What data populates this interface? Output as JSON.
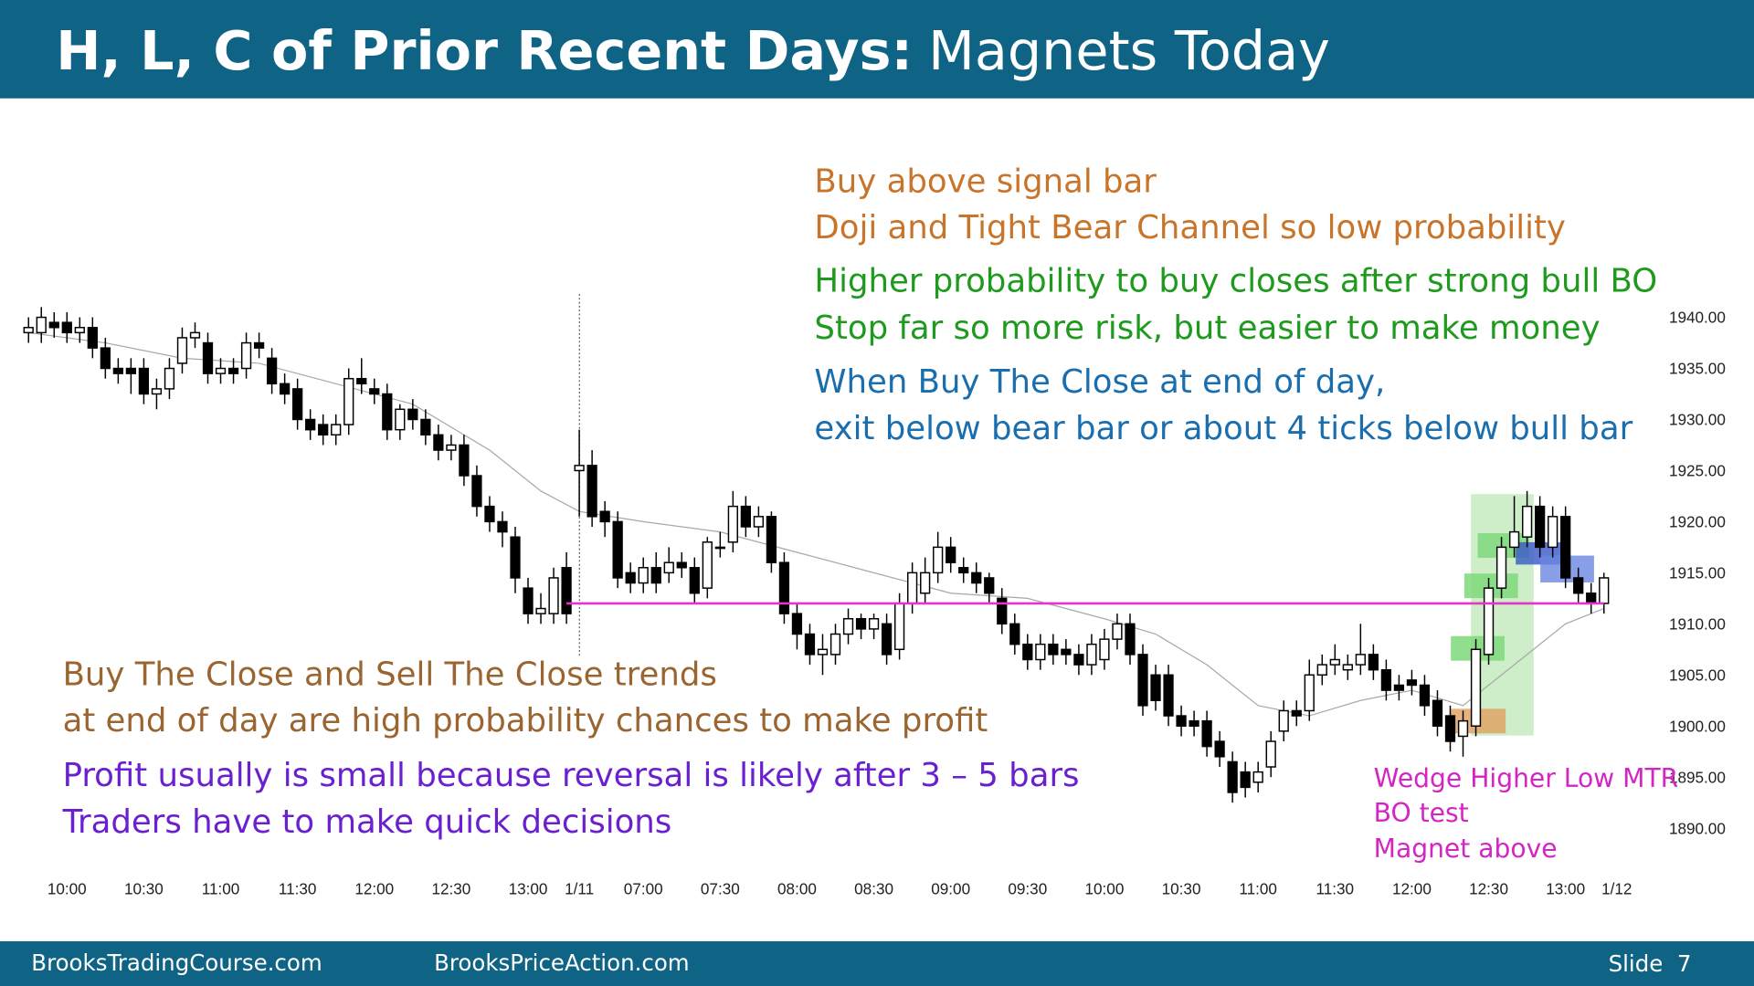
{
  "chart_data": {
    "type": "candlestick",
    "title": [
      "H, L, C of Prior Recent Days:",
      "Magnets Today"
    ],
    "open": [
      1938.5,
      1938.5,
      1939.5,
      1939.5,
      1938.5,
      1939,
      1937,
      1935,
      1935,
      1935,
      1932.5,
      1933,
      1935.5,
      1938,
      1937.5,
      1934.5,
      1935,
      1935,
      1937.5,
      1936,
      1933.5,
      1933,
      1930,
      1929.5,
      1928.5,
      1929.5,
      1934,
      1933,
      1932.5,
      1929,
      1931,
      1930,
      1928.5,
      1927,
      1927.5,
      1924.5,
      1921.5,
      1920,
      1918.5,
      1913.5,
      1911,
      1911,
      1915.5,
      1925,
      1925.5,
      1921,
      1920,
      1915,
      1914,
      1915.5,
      1915,
      1916,
      1915.5,
      1913.5,
      1917.5,
      1918,
      1921.5,
      1919.5,
      1920.5,
      1916,
      1911,
      1909,
      1907,
      1907,
      1909,
      1910.5,
      1909.5,
      1910,
      1907.5,
      1912,
      1913,
      1915,
      1917.5,
      1915.5,
      1915,
      1914.5,
      1912.5,
      1910,
      1908,
      1906.5,
      1908,
      1907.5,
      1907,
      1906,
      1906.5,
      1908.5,
      1910,
      1907,
      1905,
      1905,
      1901,
      1900.5,
      1900.5,
      1898.5,
      1896.5,
      1895.5,
      1894.5,
      1896,
      1899.5,
      1901.5,
      1901.5,
      1905,
      1906,
      1905.5,
      1906,
      1907,
      1905.5,
      1904,
      1904.5,
      1904,
      1902.5,
      1901,
      1899,
      1900,
      1907,
      1913.5,
      1917.5,
      1918.5,
      1921.5,
      1917.5,
      1920.5,
      1914.5,
      1913,
      1912
    ],
    "high": [
      1940,
      1941,
      1940.5,
      1940.5,
      1940,
      1940,
      1938,
      1936,
      1936,
      1936,
      1934,
      1936,
      1939,
      1939.5,
      1938.5,
      1936,
      1936,
      1938.5,
      1938.5,
      1937,
      1934.5,
      1934,
      1931,
      1930.5,
      1930.5,
      1935,
      1936,
      1934,
      1933.5,
      1931.5,
      1932,
      1931,
      1929.5,
      1928.5,
      1928.5,
      1925.5,
      1922.5,
      1921,
      1919.5,
      1914.5,
      1913,
      1915.5,
      1917,
      1929,
      1927,
      1922,
      1921,
      1916,
      1916.5,
      1917,
      1917.5,
      1917,
      1916.5,
      1918.5,
      1919,
      1923,
      1922.5,
      1921.5,
      1921,
      1917,
      1912,
      1910,
      1909,
      1910,
      1911.5,
      1911,
      1911,
      1911,
      1913,
      1916,
      1916.5,
      1919,
      1918.5,
      1916.5,
      1916,
      1915,
      1913.5,
      1911,
      1909,
      1909,
      1909,
      1908.5,
      1908,
      1909,
      1909.5,
      1911,
      1911,
      1908,
      1906,
      1906,
      1902,
      1901.5,
      1901.5,
      1899.5,
      1897.5,
      1896.5,
      1896.5,
      1899.5,
      1902.5,
      1902.5,
      1906.5,
      1907,
      1908,
      1907,
      1910,
      1908,
      1906.5,
      1905,
      1905.5,
      1905,
      1903.5,
      1902,
      1901.5,
      1908.5,
      1914.5,
      1918.5,
      1922.5,
      1923,
      1922.5,
      1921.5,
      1921.5,
      1915.5,
      1914,
      1915
    ],
    "low": [
      1937.5,
      1937.5,
      1938,
      1937.5,
      1937.5,
      1936,
      1934,
      1933.5,
      1932.5,
      1931.5,
      1931,
      1932,
      1934.5,
      1937,
      1933.5,
      1933.5,
      1933.5,
      1934,
      1936,
      1932.5,
      1931.5,
      1929,
      1928,
      1927.5,
      1927.5,
      1928.5,
      1932.5,
      1931.5,
      1928,
      1928,
      1929,
      1927.5,
      1926,
      1926,
      1923.5,
      1920.5,
      1919,
      1917.5,
      1913,
      1910,
      1910,
      1910,
      1910,
      1920.5,
      1919.5,
      1918.5,
      1913.5,
      1913,
      1913,
      1913,
      1914,
      1914.5,
      1912,
      1912.5,
      1916.5,
      1917,
      1918.5,
      1918.5,
      1915,
      1910,
      1907.5,
      1906,
      1905,
      1906,
      1908,
      1908.5,
      1908.5,
      1906,
      1906.5,
      1911,
      1912,
      1914,
      1915,
      1914,
      1913,
      1912,
      1909,
      1907,
      1905.5,
      1905.5,
      1906,
      1906,
      1905,
      1905,
      1905.5,
      1907.5,
      1906,
      1901,
      1901.5,
      1900,
      1899,
      1899,
      1897,
      1896,
      1892.5,
      1893,
      1893.5,
      1895,
      1898.5,
      1900,
      1900.5,
      1904,
      1905,
      1904.5,
      1905,
      1904.5,
      1902.5,
      1902.5,
      1903,
      1901,
      1899,
      1897.5,
      1897,
      1899,
      1906,
      1912.5,
      1916.5,
      1917.5,
      1916.5,
      1916.5,
      1913.5,
      1912,
      1911,
      1911
    ],
    "close": [
      1939,
      1940,
      1939,
      1938.5,
      1939,
      1937,
      1935,
      1934.5,
      1934.5,
      1932.5,
      1933,
      1935,
      1938,
      1938.5,
      1934.5,
      1935,
      1934.5,
      1937.5,
      1937,
      1933.5,
      1932.5,
      1930,
      1929,
      1928.5,
      1929.5,
      1934,
      1933.5,
      1932.5,
      1929,
      1931,
      1930,
      1928.5,
      1927,
      1927.5,
      1924.5,
      1921.5,
      1920,
      1919,
      1914.5,
      1911,
      1911.5,
      1914.5,
      1911,
      1925.5,
      1920.5,
      1920,
      1914.5,
      1914,
      1915.5,
      1914,
      1916,
      1915.5,
      1913,
      1918,
      1917.5,
      1921.5,
      1919.5,
      1920.5,
      1916,
      1911,
      1909,
      1907,
      1907.5,
      1909,
      1910.5,
      1909.5,
      1910.5,
      1907,
      1912,
      1915,
      1915,
      1917.5,
      1916,
      1915,
      1914,
      1913,
      1910,
      1908,
      1906.5,
      1908,
      1907,
      1907,
      1906,
      1908,
      1908.5,
      1910,
      1907,
      1902,
      1902.5,
      1901,
      1900,
      1900,
      1898,
      1897,
      1893.5,
      1894,
      1895.5,
      1898.5,
      1901.5,
      1901,
      1905,
      1906,
      1906.5,
      1906,
      1907,
      1905.5,
      1903.5,
      1903.5,
      1904,
      1902,
      1900,
      1898.5,
      1900.5,
      1907.5,
      1913.5,
      1917.5,
      1919,
      1921.5,
      1917.5,
      1920.5,
      1914.5,
      1913,
      1912,
      1914.5
    ],
    "up_color": "#ffffff",
    "down_color": "#000000",
    "moving_average": {
      "x": [
        0,
        6,
        12,
        18,
        24,
        30,
        36,
        40,
        43,
        48,
        54,
        60,
        66,
        72,
        78,
        84,
        88,
        92,
        96,
        100,
        104,
        108,
        112,
        116,
        120,
        123
      ],
      "values": [
        1938.5,
        1937.5,
        1936,
        1935.5,
        1933.5,
        1931.5,
        1927,
        1923,
        1921,
        1920,
        1919,
        1917,
        1915,
        1913,
        1912.5,
        1910.5,
        1909,
        1906,
        1902,
        1901,
        1902.5,
        1903.5,
        1902,
        1906,
        1910,
        1911.5
      ],
      "color": "#a8a8a8"
    },
    "reference_line": {
      "y": 1912,
      "color": "#e535c8"
    },
    "ylim": [
      1887.5,
      1942.5
    ],
    "yticks": [
      {
        "value": 1890,
        "label": "1890.00"
      },
      {
        "value": 1895,
        "label": "1895.00"
      },
      {
        "value": 1900,
        "label": "1900.00"
      },
      {
        "value": 1905,
        "label": "1905.00"
      },
      {
        "value": 1910,
        "label": "1910.00"
      },
      {
        "value": 1915,
        "label": "1915.00"
      },
      {
        "value": 1920,
        "label": "1920.00"
      },
      {
        "value": 1925,
        "label": "1925.00"
      },
      {
        "value": 1930,
        "label": "1930.00"
      },
      {
        "value": 1935,
        "label": "1935.00"
      },
      {
        "value": 1940,
        "label": "1940.00"
      }
    ],
    "xticks": [
      {
        "value": 3,
        "label": "10:00"
      },
      {
        "value": 9,
        "label": "10:30"
      },
      {
        "value": 15,
        "label": "11:00"
      },
      {
        "value": 21,
        "label": "11:30"
      },
      {
        "value": 27,
        "label": "12:00"
      },
      {
        "value": 33,
        "label": "12:30"
      },
      {
        "value": 39,
        "label": "13:00"
      },
      {
        "value": 43,
        "label": "1/11"
      },
      {
        "value": 48,
        "label": "07:00"
      },
      {
        "value": 54,
        "label": "07:30"
      },
      {
        "value": 60,
        "label": "08:00"
      },
      {
        "value": 66,
        "label": "08:30"
      },
      {
        "value": 72,
        "label": "09:00"
      },
      {
        "value": 78,
        "label": "09:30"
      },
      {
        "value": 84,
        "label": "10:00"
      },
      {
        "value": 90,
        "label": "10:30"
      },
      {
        "value": 96,
        "label": "11:00"
      },
      {
        "value": 102,
        "label": "11:30"
      },
      {
        "value": 108,
        "label": "12:00"
      },
      {
        "value": 114,
        "label": "12:30"
      },
      {
        "value": 120,
        "label": "13:00"
      },
      {
        "value": 124,
        "label": "1/12"
      }
    ],
    "annotations": [
      {
        "text": "Buy above signal bar",
        "color": "#c8742a"
      },
      {
        "text": "Doji and Tight Bear Channel so low probability",
        "color": "#c8742a"
      },
      {
        "text": "Higher probability to buy closes after strong bull BO",
        "color": "#1e9a1e"
      },
      {
        "text": "Stop far so more risk, but easier to make money",
        "color": "#1e9a1e"
      },
      {
        "text": "When Buy The Close at end of day,",
        "color": "#1a6eae"
      },
      {
        "text": "exit below bear bar or about 4 ticks below bull bar",
        "color": "#1a6eae"
      },
      {
        "text": "Buy The Close and Sell The Close trends",
        "color": "#9a6530"
      },
      {
        "text": "at end of day are high probability chances to make profit",
        "color": "#9a6530"
      },
      {
        "text": "Profit usually is small because reversal is likely after 3 – 5 bars",
        "color": "#6a1fd0"
      },
      {
        "text": "Traders have to make quick decisions",
        "color": "#6a1fd0"
      },
      {
        "text": "Wedge Higher Low MTR",
        "color": "#d424c4"
      },
      {
        "text": "BO test",
        "color": "#d424c4"
      },
      {
        "text": "Magnet above",
        "color": "#d424c4"
      }
    ]
  },
  "footer": {
    "left": "BrooksTradingCourse.com",
    "center": "BrooksPriceAction.com",
    "right": "Slide  7"
  }
}
